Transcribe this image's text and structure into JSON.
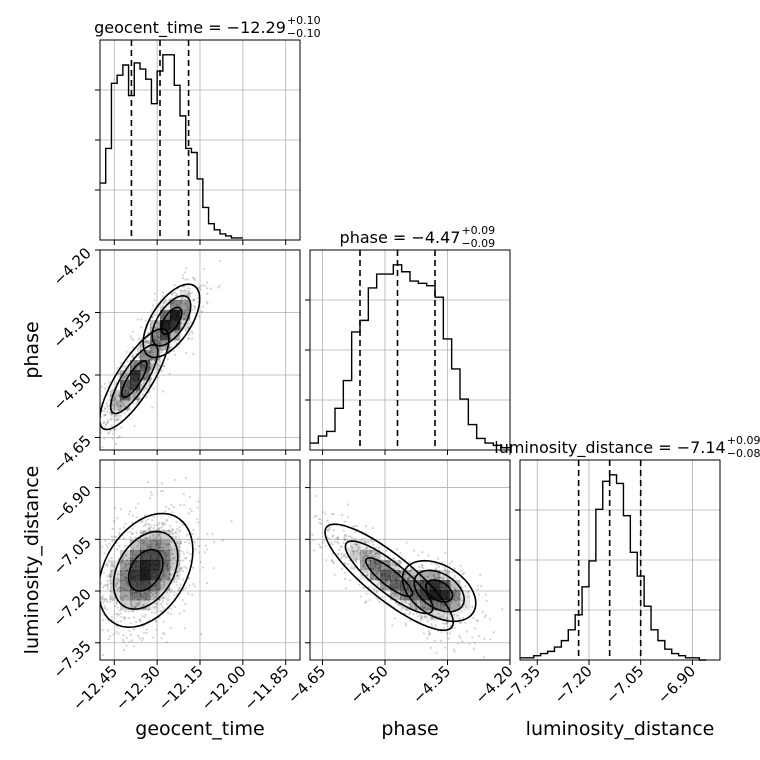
{
  "chart_data": {
    "type": "corner",
    "parameters": [
      {
        "key": "geocent_time",
        "label": "geocent_time",
        "range": [
          -12.5,
          -11.8
        ],
        "ticks": [
          -12.45,
          -12.3,
          -12.15,
          -12.0,
          -11.85
        ],
        "tick_labels": [
          "−12.45",
          "−12.30",
          "−12.15",
          "−12.00",
          "−11.85"
        ]
      },
      {
        "key": "phase",
        "label": "phase",
        "range": [
          -4.68,
          -4.2
        ],
        "ticks": [
          -4.65,
          -4.5,
          -4.35,
          -4.2
        ],
        "tick_labels": [
          "−4.65",
          "−4.50",
          "−4.35",
          "−4.20"
        ]
      },
      {
        "key": "luminosity_distance",
        "label": "luminosity_distance",
        "range": [
          -7.4,
          -6.82
        ],
        "ticks": [
          -7.35,
          -7.2,
          -7.05,
          -6.9
        ],
        "tick_labels": [
          "−7.35",
          "−7.20",
          "−7.05",
          "−6.90"
        ]
      }
    ],
    "titles": [
      {
        "main": "geocent_time = −12.29",
        "sup": "+0.10",
        "sub": "−0.10"
      },
      {
        "main": "phase = −4.47",
        "sup": "+0.09",
        "sub": "−0.09"
      },
      {
        "main": "luminosity_distance = −7.14",
        "sup": "+0.09",
        "sub": "−0.08"
      }
    ],
    "histograms": [
      {
        "param": "geocent_time",
        "bin_edges": [
          -12.5,
          -12.48,
          -12.46,
          -12.44,
          -12.42,
          -12.4,
          -12.38,
          -12.36,
          -12.34,
          -12.32,
          -12.3,
          -12.28,
          -12.26,
          -12.24,
          -12.22,
          -12.2,
          -12.18,
          -12.16,
          -12.14,
          -12.12,
          -12.1,
          -12.08,
          -12.06,
          -12.04,
          -12.02,
          -12.0
        ],
        "counts": [
          28,
          45,
          77,
          81,
          86,
          71,
          87,
          84,
          79,
          67,
          83,
          91,
          91,
          76,
          61,
          45,
          43,
          30,
          16,
          8,
          5,
          3,
          2,
          1,
          1
        ],
        "quantiles": [
          -12.39,
          -12.29,
          -12.19
        ]
      },
      {
        "param": "phase",
        "bin_edges": [
          -4.68,
          -4.66,
          -4.64,
          -4.62,
          -4.6,
          -4.58,
          -4.56,
          -4.54,
          -4.52,
          -4.5,
          -4.48,
          -4.46,
          -4.44,
          -4.42,
          -4.4,
          -4.38,
          -4.36,
          -4.34,
          -4.32,
          -4.3,
          -4.28,
          -4.26,
          -4.24,
          -4.22,
          -4.2
        ],
        "counts": [
          3,
          6,
          8,
          18,
          30,
          51,
          56,
          70,
          76,
          76,
          80,
          77,
          73,
          72,
          71,
          66,
          48,
          35,
          22,
          11,
          5,
          3,
          2,
          1
        ],
        "quantiles": [
          -4.56,
          -4.47,
          -4.38
        ]
      },
      {
        "param": "luminosity_distance",
        "bin_edges": [
          -7.4,
          -7.38,
          -7.36,
          -7.34,
          -7.32,
          -7.3,
          -7.28,
          -7.26,
          -7.24,
          -7.22,
          -7.2,
          -7.18,
          -7.16,
          -7.14,
          -7.12,
          -7.1,
          -7.08,
          -7.06,
          -7.04,
          -7.02,
          -7.0,
          -6.98,
          -6.96,
          -6.94,
          -6.92,
          -6.9,
          -6.88,
          -6.86
        ],
        "counts": [
          1,
          1,
          2,
          3,
          4,
          6,
          9,
          14,
          21,
          34,
          46,
          70,
          83,
          86,
          82,
          67,
          50,
          39,
          25,
          14,
          9,
          5,
          3,
          2,
          1,
          1,
          0
        ],
        "quantiles": [
          -7.23,
          -7.14,
          -7.05
        ]
      }
    ],
    "scatter": [
      {
        "x": "geocent_time",
        "y": "phase",
        "modes": [
          {
            "cx": -12.38,
            "cy": -4.51,
            "sx": 0.055,
            "sy": 0.055,
            "rho": 0.8,
            "weight": 0.6
          },
          {
            "cx": -12.25,
            "cy": -4.37,
            "sx": 0.045,
            "sy": 0.04,
            "rho": 0.6,
            "weight": 0.4
          }
        ]
      },
      {
        "x": "geocent_time",
        "y": "luminosity_distance",
        "modes": [
          {
            "cx": -12.34,
            "cy": -7.14,
            "sx": 0.075,
            "sy": 0.075,
            "rho": 0.35,
            "weight": 1.0
          }
        ]
      },
      {
        "x": "phase",
        "y": "luminosity_distance",
        "modes": [
          {
            "cx": -4.49,
            "cy": -7.16,
            "sx": 0.07,
            "sy": 0.07,
            "rho": -0.85,
            "weight": 0.7
          },
          {
            "cx": -4.37,
            "cy": -7.2,
            "sx": 0.04,
            "sy": 0.04,
            "rho": -0.4,
            "weight": 0.3
          }
        ]
      }
    ],
    "styles": {
      "hist_color": "#000000",
      "quantile_color": "#000000",
      "grid_color": "#b0b0b0",
      "density_color": "#000000",
      "points_color": "#808080"
    },
    "grid": true
  }
}
